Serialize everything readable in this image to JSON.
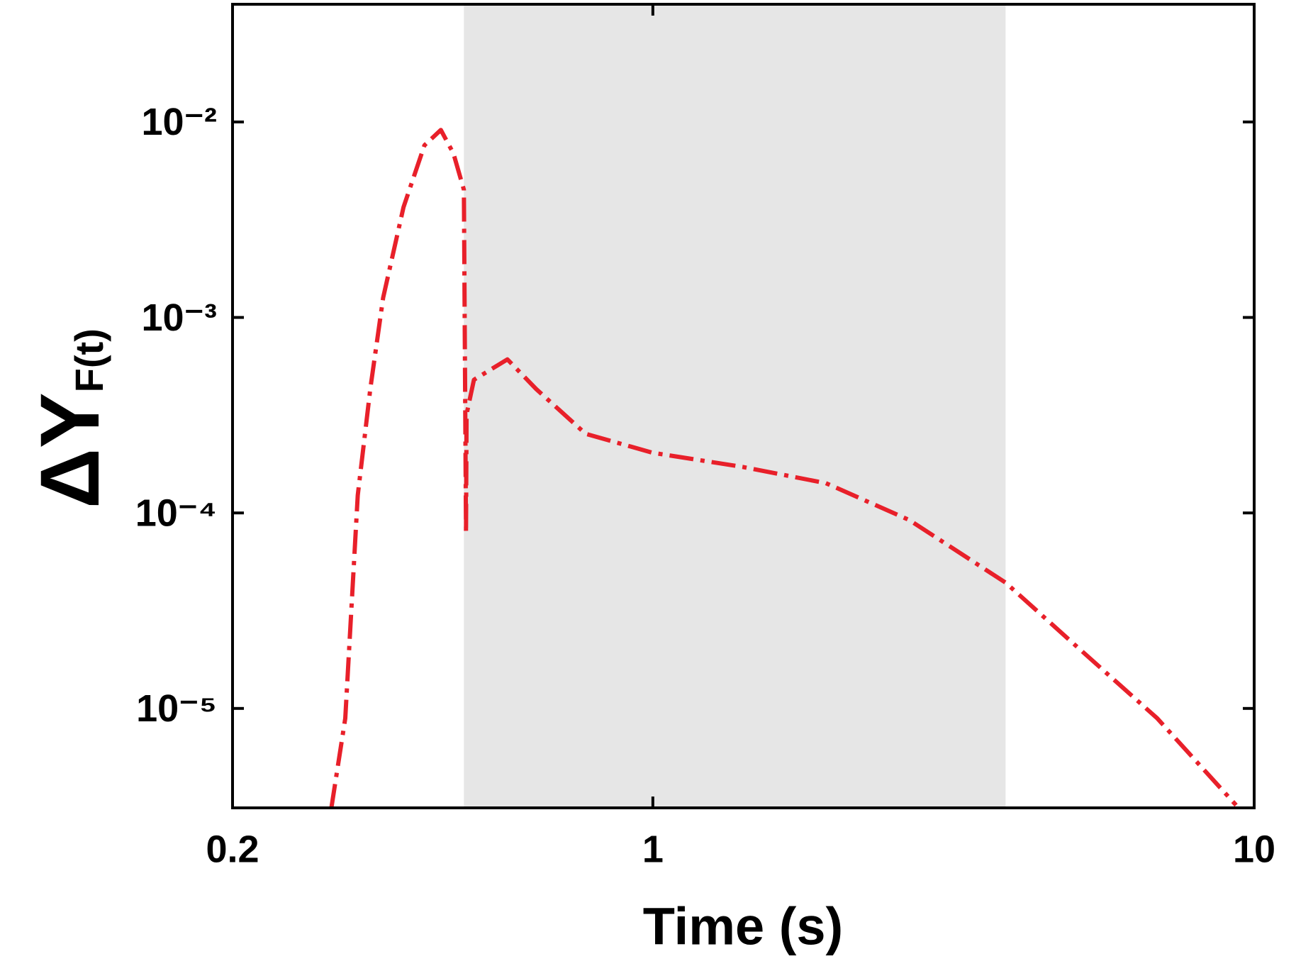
{
  "chart_data": {
    "type": "line",
    "x_label": "Time (s)",
    "y_label": "ΔY",
    "y_label_sub": "F(t)",
    "log_x": true,
    "log_y": true,
    "xlim": [
      0.2,
      10
    ],
    "xticks": [
      0.2,
      1,
      10
    ],
    "ylim": [
      3.1e-06,
      0.04
    ],
    "yticks": [
      {
        "value": 1e-05,
        "label": "10⁻⁵"
      },
      {
        "value": 0.0001,
        "label": "10⁻⁴"
      },
      {
        "value": 0.001,
        "label": "10⁻³"
      },
      {
        "value": 0.01,
        "label": "10⁻²"
      }
    ],
    "shade": [
      0.485,
      3.86
    ],
    "shade_color": "#e6e6e6",
    "series": [
      {
        "color": "#e8202a",
        "x": [
          0.292,
          0.308,
          0.323,
          0.339,
          0.356,
          0.385,
          0.417,
          0.444,
          0.466,
          0.485,
          0.489,
          0.49,
          0.504,
          0.573,
          0.64,
          0.773,
          1.0,
          1.41,
          1.94,
          2.67,
          3.86,
          5.02,
          6.9,
          9.33
        ],
        "values": [
          3.1e-06,
          8.9e-06,
          0.000123,
          0.000434,
          0.00126,
          0.00367,
          0.0076,
          0.0091,
          0.0069,
          0.0045,
          7.9e-05,
          0.00032,
          0.00048,
          0.00061,
          0.00043,
          0.000254,
          0.000203,
          0.000172,
          0.000142,
          9.2e-05,
          4.4e-05,
          2.13e-05,
          8.9e-06,
          3.2e-06
        ]
      }
    ]
  }
}
